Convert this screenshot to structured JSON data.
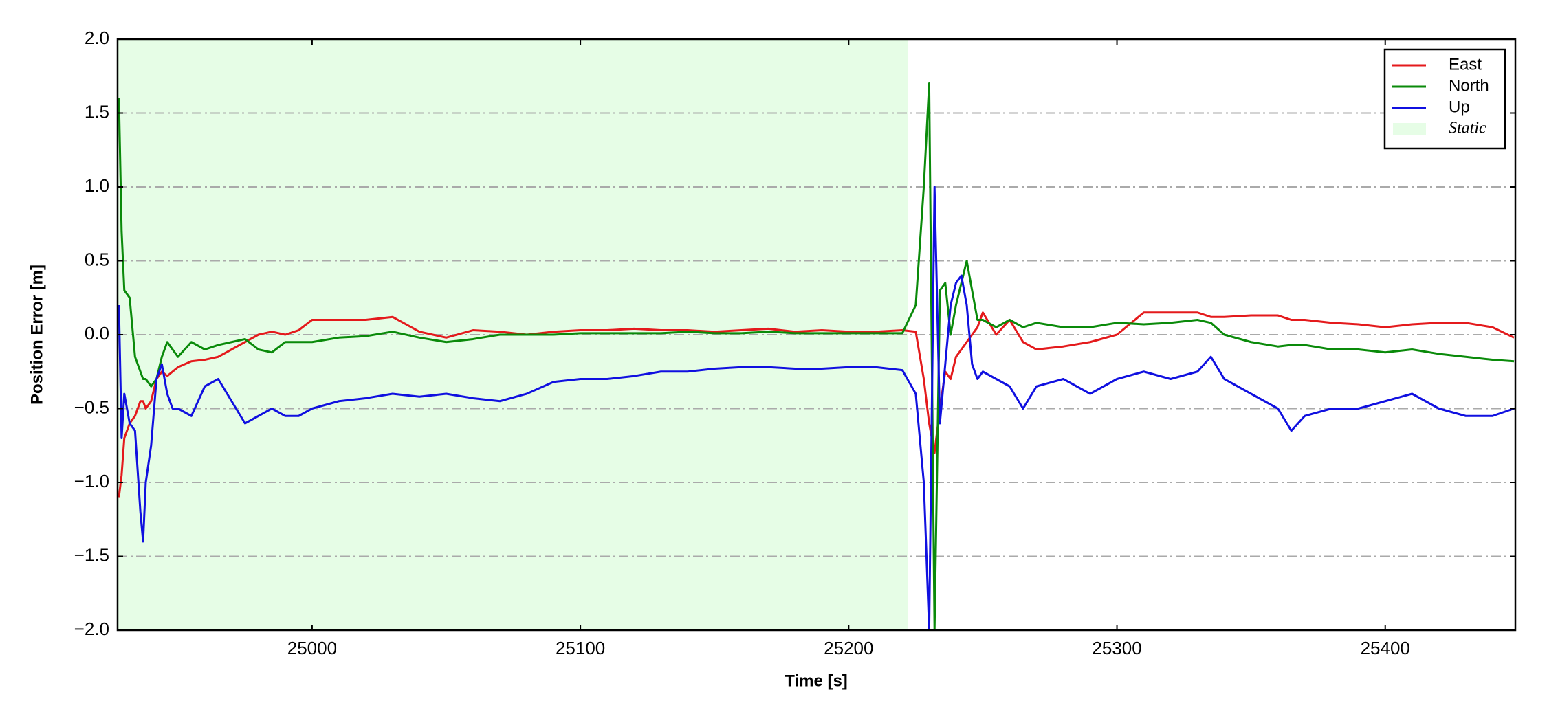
{
  "chart_data": {
    "type": "line",
    "xlabel": "Time [s]",
    "ylabel": "Position Error [m]",
    "xlim": [
      24927.5,
      25448.5
    ],
    "ylim": [
      -2,
      2
    ],
    "xticks": [
      25000,
      25100,
      25200,
      25300,
      25400
    ],
    "yticks": [
      {
        "value": -2,
        "label": "−2.0"
      },
      {
        "value": -1.5,
        "label": "−1.5"
      },
      {
        "value": -1,
        "label": "−1.0"
      },
      {
        "value": -0.5,
        "label": "−0.5"
      },
      {
        "value": 0,
        "label": "0.0"
      },
      {
        "value": 0.5,
        "label": "0.5"
      },
      {
        "value": 1,
        "label": "1.0"
      },
      {
        "value": 1.5,
        "label": "1.5"
      },
      {
        "value": 2,
        "label": "2.0"
      }
    ],
    "grid": true,
    "legend": "upper right",
    "spans": [
      {
        "name": "Static",
        "xmin": 24927.5,
        "xmax": 25222,
        "color": "#e6fde6"
      }
    ],
    "x": [
      24928,
      24929,
      24930,
      24932,
      24934,
      24936,
      24937,
      24938,
      24940,
      24942,
      24944,
      24946,
      24948,
      24950,
      24955,
      24960,
      24965,
      24970,
      24975,
      24980,
      24985,
      24990,
      24995,
      25000,
      25010,
      25020,
      25030,
      25040,
      25050,
      25060,
      25070,
      25080,
      25090,
      25100,
      25110,
      25120,
      25130,
      25140,
      25150,
      25160,
      25170,
      25180,
      25190,
      25200,
      25210,
      25220,
      25225,
      25228,
      25230,
      25232,
      25234,
      25236,
      25238,
      25240,
      25242,
      25244,
      25246,
      25248,
      25250,
      25255,
      25260,
      25265,
      25270,
      25280,
      25290,
      25300,
      25310,
      25320,
      25330,
      25335,
      25340,
      25350,
      25360,
      25365,
      25370,
      25380,
      25390,
      25400,
      25410,
      25420,
      25430,
      25440,
      25448
    ],
    "series": [
      {
        "name": "East",
        "color": "#e41a1c",
        "values": [
          -1.1,
          -0.95,
          -0.7,
          -0.6,
          -0.55,
          -0.45,
          -0.45,
          -0.5,
          -0.45,
          -0.3,
          -0.25,
          -0.28,
          -0.25,
          -0.22,
          -0.18,
          -0.17,
          -0.15,
          -0.1,
          -0.05,
          0.0,
          0.02,
          0.0,
          0.03,
          0.1,
          0.1,
          0.1,
          0.12,
          0.02,
          -0.02,
          0.03,
          0.02,
          0.0,
          0.02,
          0.03,
          0.03,
          0.04,
          0.03,
          0.03,
          0.02,
          0.03,
          0.04,
          0.02,
          0.03,
          0.02,
          0.02,
          0.03,
          0.02,
          -0.3,
          -0.6,
          -0.8,
          -0.5,
          -0.25,
          -0.3,
          -0.15,
          -0.1,
          -0.05,
          0.0,
          0.05,
          0.15,
          0.0,
          0.1,
          -0.05,
          -0.1,
          -0.08,
          -0.05,
          0.0,
          0.15,
          0.15,
          0.15,
          0.12,
          0.12,
          0.13,
          0.13,
          0.1,
          0.1,
          0.08,
          0.07,
          0.05,
          0.07,
          0.08,
          0.08,
          0.05,
          -0.02
        ]
      },
      {
        "name": "North",
        "color": "#0a8a0a",
        "values": [
          1.6,
          0.7,
          0.3,
          0.25,
          -0.15,
          -0.25,
          -0.3,
          -0.3,
          -0.35,
          -0.3,
          -0.15,
          -0.05,
          -0.1,
          -0.15,
          -0.05,
          -0.1,
          -0.07,
          -0.05,
          -0.03,
          -0.1,
          -0.12,
          -0.05,
          -0.05,
          -0.05,
          -0.02,
          -0.01,
          0.02,
          -0.02,
          -0.05,
          -0.03,
          0.0,
          0.0,
          0.0,
          0.01,
          0.01,
          0.01,
          0.01,
          0.02,
          0.01,
          0.01,
          0.02,
          0.01,
          0.01,
          0.01,
          0.01,
          0.01,
          0.2,
          1.0,
          1.7,
          -2.0,
          0.3,
          0.35,
          0.0,
          0.2,
          0.35,
          0.5,
          0.3,
          0.1,
          0.1,
          0.05,
          0.1,
          0.05,
          0.08,
          0.05,
          0.05,
          0.08,
          0.07,
          0.08,
          0.1,
          0.08,
          0.0,
          -0.05,
          -0.08,
          -0.07,
          -0.07,
          -0.1,
          -0.1,
          -0.12,
          -0.1,
          -0.13,
          -0.15,
          -0.17,
          -0.18
        ]
      },
      {
        "name": "Up",
        "color": "#1010e0",
        "values": [
          0.2,
          -0.7,
          -0.4,
          -0.6,
          -0.65,
          -1.2,
          -1.4,
          -1.0,
          -0.75,
          -0.3,
          -0.2,
          -0.4,
          -0.5,
          -0.5,
          -0.55,
          -0.35,
          -0.3,
          -0.45,
          -0.6,
          -0.55,
          -0.5,
          -0.55,
          -0.55,
          -0.5,
          -0.45,
          -0.43,
          -0.4,
          -0.42,
          -0.4,
          -0.43,
          -0.45,
          -0.4,
          -0.32,
          -0.3,
          -0.3,
          -0.28,
          -0.25,
          -0.25,
          -0.23,
          -0.22,
          -0.22,
          -0.23,
          -0.23,
          -0.22,
          -0.22,
          -0.24,
          -0.4,
          -1.0,
          -2.0,
          1.0,
          -0.6,
          -0.2,
          0.2,
          0.35,
          0.4,
          0.2,
          -0.2,
          -0.3,
          -0.25,
          -0.3,
          -0.35,
          -0.5,
          -0.35,
          -0.3,
          -0.4,
          -0.3,
          -0.25,
          -0.3,
          -0.25,
          -0.15,
          -0.3,
          -0.4,
          -0.5,
          -0.65,
          -0.55,
          -0.5,
          -0.5,
          -0.45,
          -0.4,
          -0.5,
          -0.55,
          -0.55,
          -0.5
        ]
      }
    ]
  }
}
